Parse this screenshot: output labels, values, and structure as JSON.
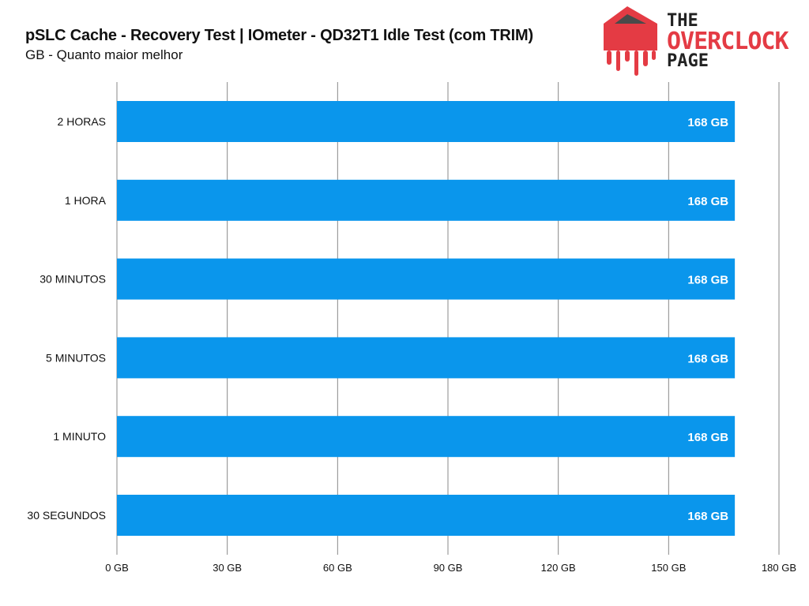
{
  "header": {
    "title": "pSLC Cache - Recovery Test | IOmeter - QD32T1 Idle Test (com TRIM)",
    "subtitle": "GB - Quanto maior melhor"
  },
  "logo": {
    "line1": "THE",
    "line2": "OVERCLOCK",
    "line3": "PAGE",
    "brand_color": "#e43b44"
  },
  "chart_data": {
    "type": "bar",
    "orientation": "horizontal",
    "title": "pSLC Cache - Recovery Test | IOmeter - QD32T1 Idle Test (com TRIM)",
    "subtitle": "GB - Quanto maior melhor",
    "categories": [
      "2 HORAS",
      "1 HORA",
      "30 MINUTOS",
      "5 MINUTOS",
      "1 MINUTO",
      "30 SEGUNDOS"
    ],
    "values": [
      168,
      168,
      168,
      168,
      168,
      168
    ],
    "value_labels": [
      "168 GB",
      "168 GB",
      "168 GB",
      "168 GB",
      "168 GB",
      "168 GB"
    ],
    "xlim": [
      0,
      180
    ],
    "xticks": [
      0,
      30,
      60,
      90,
      120,
      150,
      180
    ],
    "xtick_labels": [
      "0 GB",
      "30 GB",
      "60 GB",
      "90 GB",
      "120 GB",
      "150 GB",
      "180 GB"
    ],
    "xlabel": "",
    "ylabel": "",
    "grid": true,
    "bar_color": "#0a96ec"
  }
}
